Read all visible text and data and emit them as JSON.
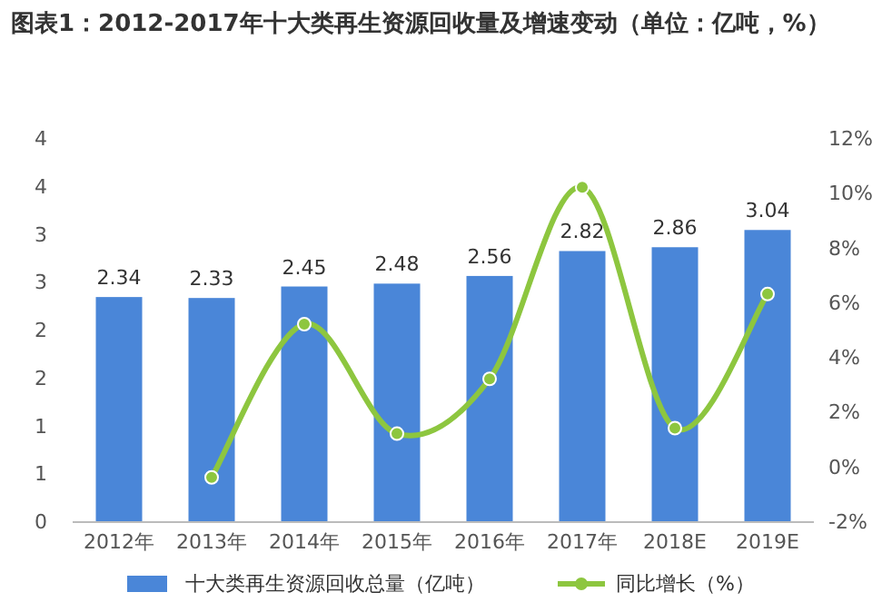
{
  "chart_data": {
    "type": "bar",
    "title": "图表1：2012-2017年十大类再生资源回收量及增速变动（单位：亿吨，%）",
    "categories": [
      "2012年",
      "2013年",
      "2014年",
      "2015年",
      "2016年",
      "2017年",
      "2018E",
      "2019E"
    ],
    "series": [
      {
        "name": "十大类再生资源回收总量（亿吨）",
        "color": "#4a86d8",
        "values": [
          2.34,
          2.33,
          2.45,
          2.48,
          2.56,
          2.82,
          2.86,
          3.04
        ],
        "value_labels": [
          "2.34",
          "2.33",
          "2.45",
          "2.48",
          "2.56",
          "2.82",
          "2.86",
          "3.04"
        ]
      },
      {
        "name": "同比增长（%）",
        "type": "line",
        "axis": "y2",
        "color": "#8dc63f",
        "values": [
          null,
          -0.4,
          5.2,
          1.2,
          3.2,
          10.2,
          1.4,
          6.3
        ]
      }
    ],
    "ylim": [
      0,
      4
    ],
    "yticks": [
      0,
      {
        "value": 0.5,
        "label": "1"
      },
      1,
      {
        "value": 1.5,
        "label": "2"
      },
      2,
      {
        "value": 2.5,
        "label": "3"
      },
      3,
      {
        "value": 3.5,
        "label": "4"
      },
      4
    ],
    "y2lim": [
      -2,
      12
    ],
    "y2ticks": [
      {
        "value": -2,
        "label": "-2%"
      },
      {
        "value": 0,
        "label": "0%"
      },
      {
        "value": 2,
        "label": "2%"
      },
      {
        "value": 4,
        "label": "4%"
      },
      {
        "value": 6,
        "label": "6%"
      },
      {
        "value": 8,
        "label": "8%"
      },
      {
        "value": 10,
        "label": "10%"
      },
      {
        "value": 12,
        "label": "12%"
      }
    ],
    "legend": "bottom",
    "marker": "circle"
  }
}
